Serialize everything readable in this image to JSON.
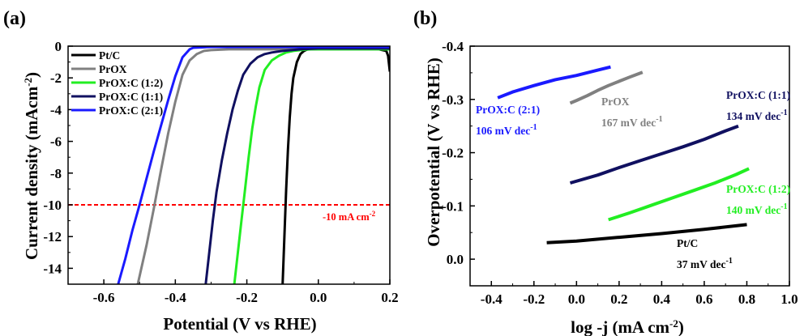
{
  "chart_data": [
    {
      "panel": "(a)",
      "type": "line",
      "xlabel": "Potential (V vs RHE)",
      "ylabel": "Current density (mAcm-2)",
      "ylabel_text": "Current density (mAcm",
      "ylabel_sup": "-2",
      "ylabel_close": ")",
      "xlim": [
        -0.7,
        0.2
      ],
      "ylim": [
        -15,
        0
      ],
      "xticks": [
        -0.6,
        -0.4,
        -0.2,
        0.0,
        0.2
      ],
      "xtick_labels": [
        "-0.6",
        "-0.4",
        "-0.2",
        "0.0",
        "0.2"
      ],
      "yticks": [
        0,
        -2,
        -4,
        -6,
        -8,
        -10,
        -12,
        -14
      ],
      "ytick_labels": [
        "0",
        "-2",
        "-4",
        "-6",
        "-8",
        "-10",
        "-12",
        "-14"
      ],
      "legend_position": "top-left",
      "reference_line": {
        "y": -10,
        "label_text": "-10 mA cm",
        "label_sup": "-2",
        "color": "#ff0000"
      },
      "series": [
        {
          "name": "Pt/C",
          "color": "#000000",
          "x": [
            -0.1,
            -0.095,
            -0.09,
            -0.085,
            -0.08,
            -0.075,
            -0.07,
            -0.06,
            -0.05,
            -0.04,
            -0.03,
            -0.01,
            0.02,
            0.05,
            0.1,
            0.15,
            0.19,
            0.195,
            0.2
          ],
          "y": [
            -15,
            -12,
            -9,
            -6.5,
            -4.5,
            -3,
            -2,
            -1,
            -0.5,
            -0.3,
            -0.2,
            -0.1,
            -0.05,
            -0.05,
            -0.05,
            -0.1,
            -0.3,
            -0.6,
            -1.6
          ]
        },
        {
          "name": "PrOX",
          "color": "#808080",
          "x": [
            -0.505,
            -0.48,
            -0.46,
            -0.44,
            -0.42,
            -0.4,
            -0.38,
            -0.36,
            -0.34,
            -0.32,
            -0.3,
            -0.25,
            -0.2,
            -0.1,
            0.0,
            0.1,
            0.2
          ],
          "y": [
            -15,
            -12.5,
            -10.2,
            -7.8,
            -5.5,
            -3.5,
            -1.8,
            -0.9,
            -0.5,
            -0.3,
            -0.25,
            -0.2,
            -0.2,
            -0.2,
            -0.2,
            -0.2,
            -0.2
          ]
        },
        {
          "name": "PrOX:C (1:2)",
          "color": "#22ee22",
          "x": [
            -0.235,
            -0.225,
            -0.215,
            -0.205,
            -0.195,
            -0.185,
            -0.175,
            -0.165,
            -0.15,
            -0.13,
            -0.11,
            -0.09,
            -0.07,
            -0.05,
            -0.02,
            0.0,
            0.1,
            0.2
          ],
          "y": [
            -15,
            -13,
            -11,
            -9,
            -7,
            -5.2,
            -3.8,
            -2.6,
            -1.5,
            -0.9,
            -0.6,
            -0.4,
            -0.3,
            -0.25,
            -0.2,
            -0.2,
            -0.2,
            -0.2
          ]
        },
        {
          "name": "PrOX:C (1:1)",
          "color": "#101060",
          "x": [
            -0.315,
            -0.305,
            -0.295,
            -0.285,
            -0.27,
            -0.255,
            -0.24,
            -0.225,
            -0.21,
            -0.19,
            -0.17,
            -0.15,
            -0.13,
            -0.1,
            -0.05,
            0.0,
            0.1,
            0.2
          ],
          "y": [
            -15,
            -13,
            -11,
            -9.2,
            -7.2,
            -5.5,
            -4,
            -2.8,
            -1.8,
            -1.1,
            -0.7,
            -0.5,
            -0.4,
            -0.3,
            -0.2,
            -0.15,
            -0.15,
            -0.15
          ]
        },
        {
          "name": "PrOX:C (2:1)",
          "color": "#1a1aff",
          "x": [
            -0.56,
            -0.54,
            -0.52,
            -0.5,
            -0.48,
            -0.46,
            -0.44,
            -0.42,
            -0.4,
            -0.38,
            -0.36,
            -0.35,
            -0.3,
            -0.2,
            -0.1,
            0.0,
            0.1,
            0.2
          ],
          "y": [
            -15,
            -13.4,
            -11.6,
            -10,
            -8.3,
            -6.6,
            -5,
            -3.4,
            -1.9,
            -0.7,
            -0.2,
            -0.1,
            -0.05,
            -0.05,
            -0.05,
            -0.05,
            -0.05,
            -0.05
          ]
        }
      ]
    },
    {
      "panel": "(b)",
      "type": "line",
      "xlabel": "log -j (mA cm-2)",
      "xlabel_text": "log -j (mA cm",
      "xlabel_sup": "-2",
      "xlabel_close": ")",
      "ylabel": "Overpotential (V vs RHE)",
      "xlim": [
        -0.5,
        1.0
      ],
      "ylim": [
        0.05,
        -0.4
      ],
      "xticks": [
        -0.4,
        -0.2,
        0.0,
        0.2,
        0.4,
        0.6,
        0.8,
        1.0
      ],
      "xtick_labels": [
        "-0.4",
        "-0.2",
        "0.0",
        "0.2",
        "0.4",
        "0.6",
        "0.8",
        "1.0"
      ],
      "yticks": [
        -0.4,
        -0.3,
        -0.2,
        -0.1,
        0.0
      ],
      "ytick_labels": [
        "-0.4",
        "-0.3",
        "-0.2",
        "-0.1",
        "0.0"
      ],
      "series": [
        {
          "name": "PrOX:C (2:1)",
          "color": "#1a1aff",
          "slope_text": "106 mV dec",
          "slope_sup": "-1",
          "x": [
            -0.37,
            -0.3,
            -0.2,
            -0.1,
            0.0,
            0.1,
            0.16
          ],
          "y": [
            -0.303,
            -0.314,
            -0.326,
            -0.337,
            -0.345,
            -0.355,
            -0.361
          ]
        },
        {
          "name": "PrOX",
          "color": "#808080",
          "slope_text": "167 mV dec",
          "slope_sup": "-1",
          "x": [
            -0.03,
            0.0,
            0.05,
            0.1,
            0.15,
            0.2,
            0.25,
            0.31
          ],
          "y": [
            -0.293,
            -0.298,
            -0.307,
            -0.317,
            -0.326,
            -0.334,
            -0.342,
            -0.351
          ]
        },
        {
          "name": "PrOX:C (1:1)",
          "color": "#101060",
          "slope_text": "134 mV dec",
          "slope_sup": "-1",
          "x": [
            -0.03,
            0.1,
            0.2,
            0.3,
            0.4,
            0.5,
            0.6,
            0.7,
            0.76
          ],
          "y": [
            -0.143,
            -0.158,
            -0.172,
            -0.185,
            -0.198,
            -0.211,
            -0.225,
            -0.241,
            -0.25
          ]
        },
        {
          "name": "PrOX:C (1:2)",
          "color": "#22ee22",
          "slope_text": "140 mV dec",
          "slope_sup": "-1",
          "x": [
            0.15,
            0.25,
            0.35,
            0.45,
            0.55,
            0.65,
            0.75,
            0.81
          ],
          "y": [
            -0.074,
            -0.087,
            -0.101,
            -0.115,
            -0.129,
            -0.143,
            -0.159,
            -0.17
          ]
        },
        {
          "name": "Pt/C",
          "color": "#000000",
          "slope_text": "37 mV dec",
          "slope_sup": "-1",
          "x": [
            -0.14,
            0.0,
            0.2,
            0.4,
            0.6,
            0.8
          ],
          "y": [
            -0.031,
            -0.034,
            -0.041,
            -0.048,
            -0.056,
            -0.065
          ]
        }
      ]
    }
  ]
}
